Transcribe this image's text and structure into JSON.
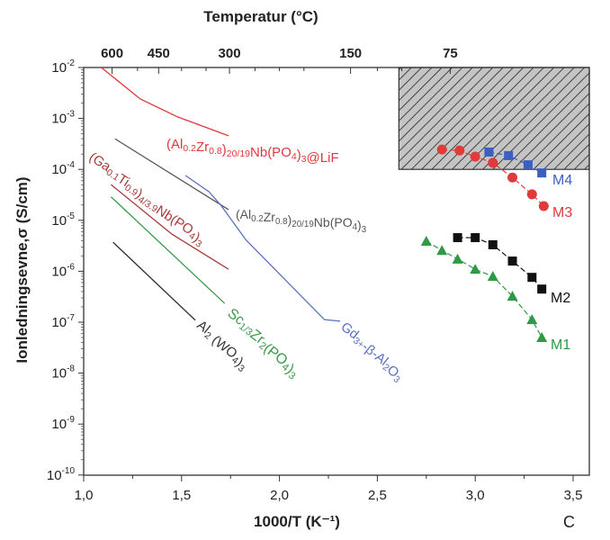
{
  "chart_data": {
    "type": "line",
    "title": "",
    "xlabel": "1000/T (K⁻¹)",
    "xlabel_parts": [
      {
        "t": "1000/"
      },
      {
        "t": "T",
        "i": true
      },
      {
        "t": " (K"
      },
      {
        "t": "-1",
        "sup": true
      },
      {
        "t": ")"
      }
    ],
    "ylabel": "Ionledningsevne,σ  (S/cm)",
    "top_axis_label": "Temperatur (°C)",
    "panel_letter": "C",
    "xlim": [
      1.0,
      3.58
    ],
    "ylim_log10": [
      -10,
      -2
    ],
    "x_ticks": [
      1.0,
      1.5,
      2.0,
      2.5,
      3.0,
      3.5
    ],
    "x_tick_labels": [
      "1,0",
      "1,5",
      "2,0",
      "2,5",
      "3,0",
      "3,5"
    ],
    "y_ticks_log10": [
      -2,
      -3,
      -4,
      -5,
      -6,
      -7,
      -8,
      -9,
      -10
    ],
    "y_tick_labels": [
      "-2",
      "-3",
      "-4",
      "-5",
      "-6",
      "-7",
      "-8",
      "-9",
      "-10"
    ],
    "top_ticks_celsius": [
      600,
      450,
      300,
      150,
      75
    ],
    "top_tick_labels": [
      "600",
      "450",
      "300",
      "150",
      "75"
    ],
    "shaded_region": {
      "x": [
        2.61,
        3.58
      ],
      "log10_y": [
        -4.0,
        -2.0
      ],
      "pattern": "hatched"
    },
    "lines": [
      {
        "name": "(Al0.2Zr0.8)20/19Nb(PO4)3@LiF",
        "color": "#e0383c",
        "x": [
          1.09,
          1.29,
          1.48,
          1.74
        ],
        "log10_y": [
          -2.0,
          -2.62,
          -2.97,
          -3.34
        ],
        "label": [
          {
            "t": "(Al"
          },
          {
            "t": "0.2",
            "sub": true
          },
          {
            "t": "Zr"
          },
          {
            "t": "0.8",
            "sub": true
          },
          {
            "t": ")"
          },
          {
            "t": "20/19",
            "sub": true
          },
          {
            "t": "Nb(PO"
          },
          {
            "t": "4",
            "sub": true
          },
          {
            "t": ")"
          },
          {
            "t": "3",
            "sub": true
          },
          {
            "t": "@LiF"
          }
        ]
      },
      {
        "name": "(Al0.2Zr0.8)20/19Nb(PO4)3",
        "color": "#555555",
        "x": [
          1.16,
          1.74
        ],
        "log10_y": [
          -3.4,
          -4.79
        ],
        "label": [
          {
            "t": "(Al"
          },
          {
            "t": "0.2",
            "sub": true
          },
          {
            "t": "Zr"
          },
          {
            "t": "0.8",
            "sub": true
          },
          {
            "t": ")"
          },
          {
            "t": "20/19",
            "sub": true
          },
          {
            "t": "Nb(PO"
          },
          {
            "t": "4",
            "sub": true
          },
          {
            "t": ")"
          },
          {
            "t": "3",
            "sub": true
          }
        ]
      },
      {
        "name": "(Ga0.1Ti0.9)4/3.9Nb(PO4)3",
        "color": "#a83a3a",
        "x": [
          1.14,
          1.45,
          1.74
        ],
        "log10_y": [
          -4.3,
          -5.27,
          -5.96
        ],
        "label": [
          {
            "t": "(Ga"
          },
          {
            "t": "0.1",
            "sub": true
          },
          {
            "t": "Ti"
          },
          {
            "t": "0.9",
            "sub": true
          },
          {
            "t": ")"
          },
          {
            "t": "4/3.9",
            "sub": true
          },
          {
            "t": "Nb(PO"
          },
          {
            "t": "4",
            "sub": true
          },
          {
            "t": ")"
          },
          {
            "t": "3",
            "sub": true
          }
        ]
      },
      {
        "name": "Sc1/3Zr2(PO4)3",
        "color": "#3a9a4a",
        "x": [
          1.14,
          1.72
        ],
        "log10_y": [
          -4.54,
          -6.63
        ],
        "label": [
          {
            "t": "Sc"
          },
          {
            "t": "1/3",
            "sub": true
          },
          {
            "t": "Zr"
          },
          {
            "t": "2",
            "sub": true
          },
          {
            "t": "(PO"
          },
          {
            "t": "4",
            "sub": true
          },
          {
            "t": ")"
          },
          {
            "t": "3",
            "sub": true
          }
        ]
      },
      {
        "name": "Al2(WO4)3",
        "color": "#333333",
        "x": [
          1.15,
          1.57
        ],
        "log10_y": [
          -5.43,
          -6.96
        ],
        "label": [
          {
            "t": "Al"
          },
          {
            "t": "2",
            "sub": true
          },
          {
            "t": " (WO"
          },
          {
            "t": "4",
            "sub": true
          },
          {
            "t": ")"
          },
          {
            "t": "3",
            "sub": true
          }
        ]
      },
      {
        "name": "Gd3+-β-Al2O3",
        "color": "#5a6fc0",
        "x": [
          1.52,
          1.64,
          1.7,
          1.83,
          2.23,
          2.31
        ],
        "log10_y": [
          -4.12,
          -4.44,
          -4.7,
          -5.39,
          -6.95,
          -6.98
        ],
        "label": [
          {
            "t": "Gd"
          },
          {
            "t": "3+",
            "sub": true
          },
          {
            "t": "-β-Al"
          },
          {
            "t": "2",
            "sub": true
          },
          {
            "t": "O"
          },
          {
            "t": "3",
            "sub": true
          }
        ]
      }
    ],
    "series": [
      {
        "name": "M4",
        "color": "#3a5fc0",
        "marker": "square",
        "x": [
          3.07,
          3.17,
          3.27,
          3.34
        ],
        "log10_y": [
          -3.66,
          -3.73,
          -3.91,
          -4.07
        ]
      },
      {
        "name": "M3",
        "color": "#e03a3a",
        "marker": "circle",
        "x": [
          2.83,
          2.92,
          3.0,
          3.09,
          3.19,
          3.29,
          3.35
        ],
        "log10_y": [
          -3.61,
          -3.63,
          -3.75,
          -3.87,
          -4.16,
          -4.49,
          -4.72
        ]
      },
      {
        "name": "M2",
        "color": "#111111",
        "marker": "square",
        "x": [
          2.91,
          3.0,
          3.09,
          3.19,
          3.29,
          3.34
        ],
        "log10_y": [
          -5.34,
          -5.34,
          -5.48,
          -5.8,
          -6.12,
          -6.35
        ]
      },
      {
        "name": "M1",
        "color": "#2e9a45",
        "marker": "triangle",
        "x": [
          2.75,
          2.83,
          2.91,
          3.0,
          3.09,
          3.19,
          3.29,
          3.34
        ],
        "log10_y": [
          -5.41,
          -5.59,
          -5.76,
          -5.96,
          -6.1,
          -6.49,
          -6.95,
          -7.3
        ]
      }
    ]
  }
}
